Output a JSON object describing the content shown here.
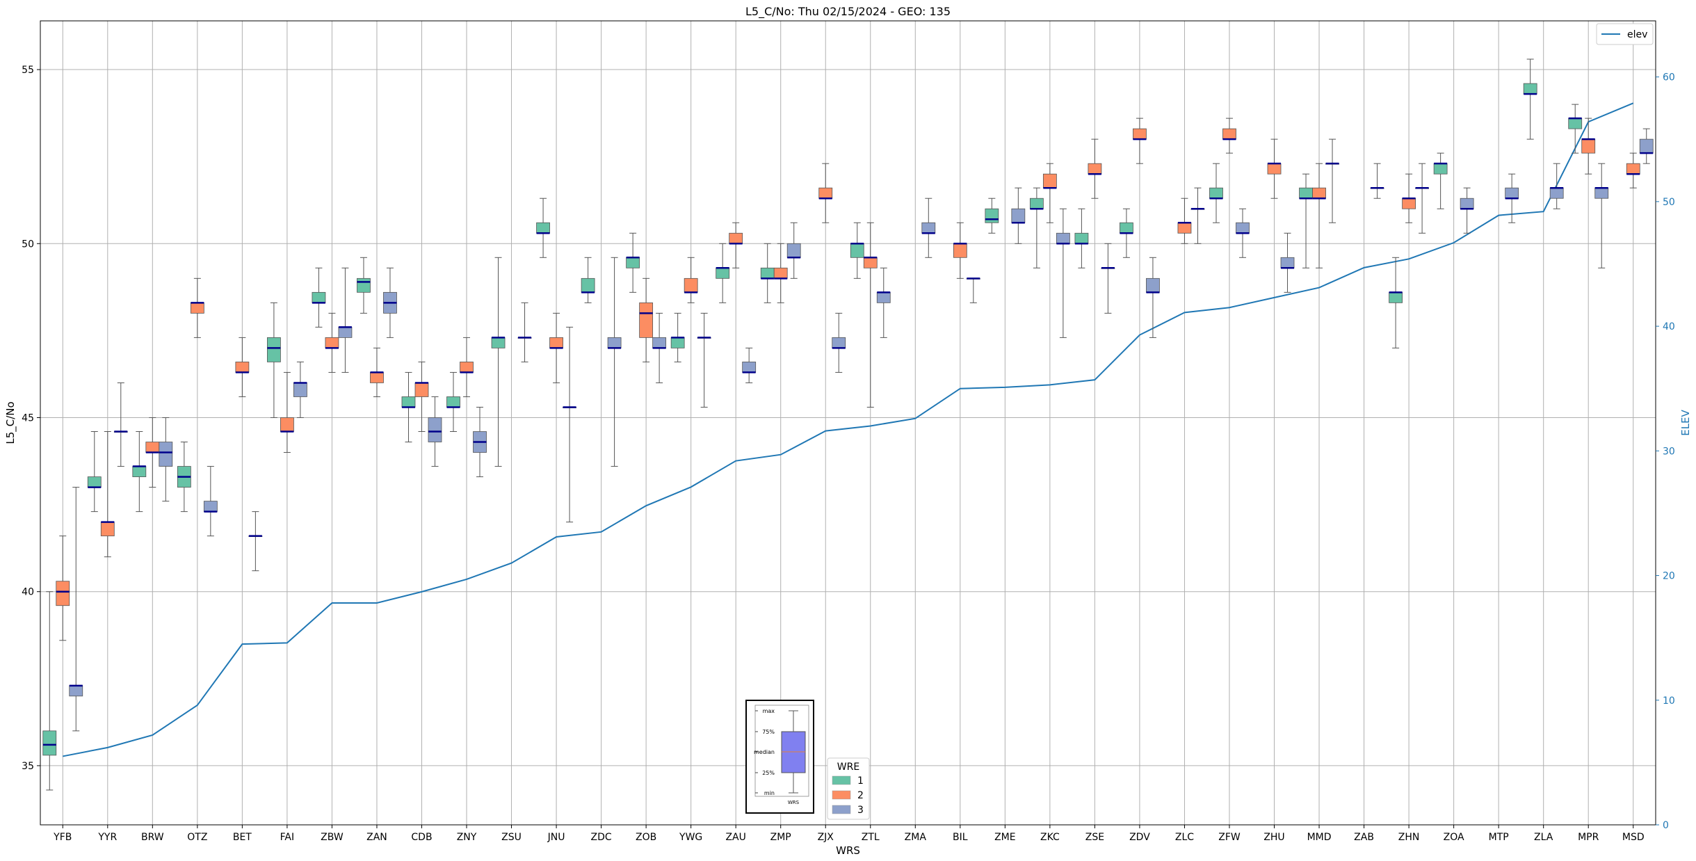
{
  "chart_data": {
    "type": "box",
    "title": "L5_C/No: Thu 02/15/2024 - GEO: 135",
    "xlabel": "WRS",
    "ylabel": "L5_C/No",
    "y2label": "ELEV",
    "ylim": [
      33.3,
      56.4
    ],
    "y2lim": [
      0,
      64.5
    ],
    "yticks": [
      35,
      40,
      45,
      50,
      55
    ],
    "y2ticks": [
      0,
      10,
      20,
      30,
      40,
      50,
      60
    ],
    "grid": true,
    "colors": {
      "wre1": "#66c2a5",
      "wre2": "#fc8d62",
      "wre3": "#8da0cb",
      "median": "#00008b",
      "elev": "#1f77b4",
      "whisker": "#555555"
    },
    "categories": [
      "YFB",
      "YYR",
      "BRW",
      "OTZ",
      "BET",
      "FAI",
      "ZBW",
      "ZAN",
      "CDB",
      "ZNY",
      "ZSU",
      "JNU",
      "ZDC",
      "ZOB",
      "YWG",
      "ZAU",
      "ZMP",
      "ZJX",
      "ZTL",
      "ZMA",
      "BIL",
      "ZME",
      "ZKC",
      "ZSE",
      "ZDV",
      "ZLC",
      "ZFW",
      "ZHU",
      "MMD",
      "ZAB",
      "ZHN",
      "ZOA",
      "MTP",
      "ZLA",
      "MPR",
      "MSD"
    ],
    "legend": {
      "title": "WRE",
      "placement": "lower center",
      "entries": [
        {
          "label": "1",
          "color": "#66c2a5"
        },
        {
          "label": "2",
          "color": "#fc8d62"
        },
        {
          "label": "3",
          "color": "#8da0cb"
        }
      ]
    },
    "elev_legend": {
      "label": "elev",
      "placement": "upper right"
    },
    "inset_legend": {
      "labels": [
        "max",
        "75%",
        "median",
        "25%",
        "min"
      ],
      "xlabel": "WRS"
    },
    "elev": [
      5.5,
      6.2,
      7.2,
      9.6,
      14.5,
      14.6,
      17.8,
      17.8,
      18.7,
      19.7,
      21.0,
      23.1,
      23.5,
      25.6,
      27.1,
      29.2,
      29.7,
      31.6,
      32.0,
      32.6,
      35.0,
      35.1,
      35.3,
      35.7,
      39.3,
      41.1,
      41.5,
      42.3,
      43.1,
      44.7,
      45.4,
      46.7,
      48.9,
      49.2,
      56.4,
      57.9
    ],
    "series": [
      {
        "name": "1",
        "boxes": [
          {
            "cat": 0,
            "min": 34.3,
            "q1": 35.3,
            "median": 35.6,
            "q3": 36.0,
            "max": 40.0
          },
          {
            "cat": 1,
            "min": 42.3,
            "q1": 43.0,
            "median": 43.0,
            "q3": 43.3,
            "max": 44.6
          },
          {
            "cat": 2,
            "min": 42.3,
            "q1": 43.3,
            "median": 43.6,
            "q3": 43.6,
            "max": 44.6
          },
          {
            "cat": 3,
            "min": 42.3,
            "q1": 43.0,
            "median": 43.3,
            "q3": 43.6,
            "max": 44.3
          },
          {
            "cat": 5,
            "min": 45.0,
            "q1": 46.6,
            "median": 47.0,
            "q3": 47.3,
            "max": 48.3
          },
          {
            "cat": 6,
            "min": 47.6,
            "q1": 48.3,
            "median": 48.3,
            "q3": 48.6,
            "max": 49.3
          },
          {
            "cat": 7,
            "min": 48.0,
            "q1": 48.6,
            "median": 48.9,
            "q3": 49.0,
            "max": 49.6
          },
          {
            "cat": 8,
            "min": 44.3,
            "q1": 45.3,
            "median": 45.3,
            "q3": 45.6,
            "max": 46.3
          },
          {
            "cat": 9,
            "min": 44.6,
            "q1": 45.3,
            "median": 45.3,
            "q3": 45.6,
            "max": 46.3
          },
          {
            "cat": 10,
            "min": 43.6,
            "q1": 47.0,
            "median": 47.3,
            "q3": 47.3,
            "max": 49.6
          },
          {
            "cat": 11,
            "min": 49.6,
            "q1": 50.3,
            "median": 50.3,
            "q3": 50.6,
            "max": 51.3
          },
          {
            "cat": 12,
            "min": 48.3,
            "q1": 48.6,
            "median": 48.6,
            "q3": 49.0,
            "max": 49.6
          },
          {
            "cat": 13,
            "min": 48.6,
            "q1": 49.3,
            "median": 49.6,
            "q3": 49.6,
            "max": 50.3
          },
          {
            "cat": 14,
            "min": 46.6,
            "q1": 47.0,
            "median": 47.3,
            "q3": 47.3,
            "max": 48.0
          },
          {
            "cat": 15,
            "min": 48.3,
            "q1": 49.0,
            "median": 49.3,
            "q3": 49.3,
            "max": 50.0
          },
          {
            "cat": 16,
            "min": 48.3,
            "q1": 49.0,
            "median": 49.0,
            "q3": 49.3,
            "max": 50.0
          },
          {
            "cat": 18,
            "min": 49.0,
            "q1": 49.6,
            "median": 50.0,
            "q3": 50.0,
            "max": 50.6
          },
          {
            "cat": 21,
            "min": 50.3,
            "q1": 50.6,
            "median": 50.7,
            "q3": 51.0,
            "max": 51.3
          },
          {
            "cat": 22,
            "min": 49.3,
            "q1": 51.0,
            "median": 51.0,
            "q3": 51.3,
            "max": 51.6
          },
          {
            "cat": 23,
            "min": 49.3,
            "q1": 50.0,
            "median": 50.0,
            "q3": 50.3,
            "max": 51.0
          },
          {
            "cat": 24,
            "min": 49.6,
            "q1": 50.3,
            "median": 50.3,
            "q3": 50.6,
            "max": 51.0
          },
          {
            "cat": 26,
            "min": 50.6,
            "q1": 51.3,
            "median": 51.3,
            "q3": 51.6,
            "max": 52.3
          },
          {
            "cat": 28,
            "min": 49.3,
            "q1": 51.3,
            "median": 51.3,
            "q3": 51.6,
            "max": 52.0
          },
          {
            "cat": 30,
            "min": 47.0,
            "q1": 48.3,
            "median": 48.6,
            "q3": 48.6,
            "max": 49.6
          },
          {
            "cat": 31,
            "min": 51.0,
            "q1": 52.0,
            "median": 52.3,
            "q3": 52.3,
            "max": 52.6
          },
          {
            "cat": 33,
            "min": 53.0,
            "q1": 54.3,
            "median": 54.3,
            "q3": 54.6,
            "max": 55.3
          },
          {
            "cat": 34,
            "min": 52.6,
            "q1": 53.3,
            "median": 53.6,
            "q3": 53.6,
            "max": 54.0
          }
        ]
      },
      {
        "name": "2",
        "boxes": [
          {
            "cat": 0,
            "min": 38.6,
            "q1": 39.6,
            "median": 40.0,
            "q3": 40.3,
            "max": 41.6
          },
          {
            "cat": 1,
            "min": 41.0,
            "q1": 41.6,
            "median": 42.0,
            "q3": 42.0,
            "max": 44.6
          },
          {
            "cat": 2,
            "min": 43.0,
            "q1": 44.0,
            "median": 44.0,
            "q3": 44.3,
            "max": 45.0
          },
          {
            "cat": 3,
            "min": 47.3,
            "q1": 48.0,
            "median": 48.3,
            "q3": 48.3,
            "max": 49.0
          },
          {
            "cat": 4,
            "min": 45.6,
            "q1": 46.3,
            "median": 46.3,
            "q3": 46.6,
            "max": 47.3
          },
          {
            "cat": 5,
            "min": 44.0,
            "q1": 44.6,
            "median": 44.6,
            "q3": 45.0,
            "max": 46.3
          },
          {
            "cat": 6,
            "min": 46.3,
            "q1": 47.0,
            "median": 47.0,
            "q3": 47.3,
            "max": 48.0
          },
          {
            "cat": 7,
            "min": 45.6,
            "q1": 46.0,
            "median": 46.3,
            "q3": 46.3,
            "max": 47.0
          },
          {
            "cat": 8,
            "min": 44.6,
            "q1": 45.6,
            "median": 46.0,
            "q3": 46.0,
            "max": 46.6
          },
          {
            "cat": 9,
            "min": 45.6,
            "q1": 46.3,
            "median": 46.3,
            "q3": 46.6,
            "max": 47.3
          },
          {
            "cat": 11,
            "min": 46.0,
            "q1": 47.0,
            "median": 47.0,
            "q3": 47.3,
            "max": 48.0
          },
          {
            "cat": 13,
            "min": 46.6,
            "q1": 47.3,
            "median": 48.0,
            "q3": 48.3,
            "max": 49.0
          },
          {
            "cat": 14,
            "min": 48.3,
            "q1": 48.6,
            "median": 48.6,
            "q3": 49.0,
            "max": 49.6
          },
          {
            "cat": 15,
            "min": 49.3,
            "q1": 50.0,
            "median": 50.0,
            "q3": 50.3,
            "max": 50.6
          },
          {
            "cat": 16,
            "min": 48.3,
            "q1": 49.0,
            "median": 49.0,
            "q3": 49.3,
            "max": 50.0
          },
          {
            "cat": 17,
            "min": 50.6,
            "q1": 51.3,
            "median": 51.3,
            "q3": 51.6,
            "max": 52.3
          },
          {
            "cat": 18,
            "min": 45.3,
            "q1": 49.3,
            "median": 49.6,
            "q3": 49.6,
            "max": 50.6
          },
          {
            "cat": 20,
            "min": 49.0,
            "q1": 49.6,
            "median": 50.0,
            "q3": 50.0,
            "max": 50.6
          },
          {
            "cat": 22,
            "min": 50.6,
            "q1": 51.6,
            "median": 51.6,
            "q3": 52.0,
            "max": 52.3
          },
          {
            "cat": 23,
            "min": 51.3,
            "q1": 52.0,
            "median": 52.0,
            "q3": 52.3,
            "max": 53.0
          },
          {
            "cat": 24,
            "min": 52.3,
            "q1": 53.0,
            "median": 53.0,
            "q3": 53.3,
            "max": 53.6
          },
          {
            "cat": 25,
            "min": 50.0,
            "q1": 50.3,
            "median": 50.6,
            "q3": 50.6,
            "max": 51.3
          },
          {
            "cat": 26,
            "min": 52.6,
            "q1": 53.0,
            "median": 53.0,
            "q3": 53.3,
            "max": 53.6
          },
          {
            "cat": 27,
            "min": 51.3,
            "q1": 52.0,
            "median": 52.3,
            "q3": 52.3,
            "max": 53.0
          },
          {
            "cat": 28,
            "min": 49.3,
            "q1": 51.3,
            "median": 51.3,
            "q3": 51.6,
            "max": 52.3
          },
          {
            "cat": 30,
            "min": 50.6,
            "q1": 51.0,
            "median": 51.3,
            "q3": 51.3,
            "max": 52.0
          },
          {
            "cat": 34,
            "min": 52.0,
            "q1": 52.6,
            "median": 53.0,
            "q3": 53.0,
            "max": 53.6
          },
          {
            "cat": 35,
            "min": 51.6,
            "q1": 52.0,
            "median": 52.0,
            "q3": 52.3,
            "max": 52.6
          }
        ]
      },
      {
        "name": "3",
        "boxes": [
          {
            "cat": 0,
            "min": 36.0,
            "q1": 37.0,
            "median": 37.3,
            "q3": 37.3,
            "max": 43.0
          },
          {
            "cat": 1,
            "min": 43.6,
            "q1": 44.6,
            "median": 44.6,
            "q3": 44.6,
            "max": 46.0
          },
          {
            "cat": 2,
            "min": 42.6,
            "q1": 43.6,
            "median": 44.0,
            "q3": 44.3,
            "max": 45.0
          },
          {
            "cat": 3,
            "min": 41.6,
            "q1": 42.3,
            "median": 42.3,
            "q3": 42.6,
            "max": 43.6
          },
          {
            "cat": 4,
            "min": 40.6,
            "q1": 41.6,
            "median": 41.6,
            "q3": 41.6,
            "max": 42.3
          },
          {
            "cat": 5,
            "min": 45.0,
            "q1": 45.6,
            "median": 46.0,
            "q3": 46.0,
            "max": 46.6
          },
          {
            "cat": 6,
            "min": 46.3,
            "q1": 47.3,
            "median": 47.6,
            "q3": 47.6,
            "max": 49.3
          },
          {
            "cat": 7,
            "min": 47.3,
            "q1": 48.0,
            "median": 48.3,
            "q3": 48.6,
            "max": 49.3
          },
          {
            "cat": 8,
            "min": 43.6,
            "q1": 44.3,
            "median": 44.6,
            "q3": 45.0,
            "max": 45.6
          },
          {
            "cat": 9,
            "min": 43.3,
            "q1": 44.0,
            "median": 44.3,
            "q3": 44.6,
            "max": 45.3
          },
          {
            "cat": 10,
            "min": 46.6,
            "q1": 47.3,
            "median": 47.3,
            "q3": 47.3,
            "max": 48.3
          },
          {
            "cat": 11,
            "min": 42.0,
            "q1": 45.3,
            "median": 45.3,
            "q3": 45.3,
            "max": 47.6
          },
          {
            "cat": 12,
            "min": 43.6,
            "q1": 47.0,
            "median": 47.0,
            "q3": 47.3,
            "max": 49.6
          },
          {
            "cat": 13,
            "min": 46.0,
            "q1": 47.0,
            "median": 47.0,
            "q3": 47.3,
            "max": 48.0
          },
          {
            "cat": 14,
            "min": 45.3,
            "q1": 47.3,
            "median": 47.3,
            "q3": 47.3,
            "max": 48.0
          },
          {
            "cat": 15,
            "min": 46.0,
            "q1": 46.3,
            "median": 46.3,
            "q3": 46.6,
            "max": 47.0
          },
          {
            "cat": 16,
            "min": 49.0,
            "q1": 49.6,
            "median": 49.6,
            "q3": 50.0,
            "max": 50.6
          },
          {
            "cat": 17,
            "min": 46.3,
            "q1": 47.0,
            "median": 47.0,
            "q3": 47.3,
            "max": 48.0
          },
          {
            "cat": 18,
            "min": 47.3,
            "q1": 48.3,
            "median": 48.6,
            "q3": 48.6,
            "max": 49.3
          },
          {
            "cat": 19,
            "min": 49.6,
            "q1": 50.3,
            "median": 50.3,
            "q3": 50.6,
            "max": 51.3
          },
          {
            "cat": 20,
            "min": 48.3,
            "q1": 49.0,
            "median": 49.0,
            "q3": 49.0,
            "max": 49.0
          },
          {
            "cat": 21,
            "min": 50.0,
            "q1": 50.6,
            "median": 50.6,
            "q3": 51.0,
            "max": 51.6
          },
          {
            "cat": 22,
            "min": 47.3,
            "q1": 50.0,
            "median": 50.0,
            "q3": 50.3,
            "max": 51.0
          },
          {
            "cat": 23,
            "min": 48.0,
            "q1": 49.3,
            "median": 49.3,
            "q3": 49.3,
            "max": 50.0
          },
          {
            "cat": 24,
            "min": 47.3,
            "q1": 48.6,
            "median": 48.6,
            "q3": 49.0,
            "max": 49.6
          },
          {
            "cat": 25,
            "min": 50.0,
            "q1": 51.0,
            "median": 51.0,
            "q3": 51.0,
            "max": 51.6
          },
          {
            "cat": 26,
            "min": 49.6,
            "q1": 50.3,
            "median": 50.3,
            "q3": 50.6,
            "max": 51.0
          },
          {
            "cat": 27,
            "min": 48.6,
            "q1": 49.3,
            "median": 49.3,
            "q3": 49.6,
            "max": 50.3
          },
          {
            "cat": 28,
            "min": 50.6,
            "q1": 52.3,
            "median": 52.3,
            "q3": 52.3,
            "max": 53.0
          },
          {
            "cat": 29,
            "min": 51.3,
            "q1": 51.6,
            "median": 51.6,
            "q3": 51.6,
            "max": 52.3
          },
          {
            "cat": 30,
            "min": 50.3,
            "q1": 51.6,
            "median": 51.6,
            "q3": 51.6,
            "max": 52.3
          },
          {
            "cat": 31,
            "min": 50.3,
            "q1": 51.0,
            "median": 51.0,
            "q3": 51.3,
            "max": 51.6
          },
          {
            "cat": 32,
            "min": 50.6,
            "q1": 51.3,
            "median": 51.3,
            "q3": 51.6,
            "max": 52.0
          },
          {
            "cat": 33,
            "min": 51.0,
            "q1": 51.3,
            "median": 51.6,
            "q3": 51.6,
            "max": 52.3
          },
          {
            "cat": 34,
            "min": 49.3,
            "q1": 51.3,
            "median": 51.6,
            "q3": 51.6,
            "max": 52.3
          },
          {
            "cat": 35,
            "min": 52.3,
            "q1": 52.6,
            "median": 52.6,
            "q3": 53.0,
            "max": 53.3
          }
        ]
      }
    ]
  }
}
